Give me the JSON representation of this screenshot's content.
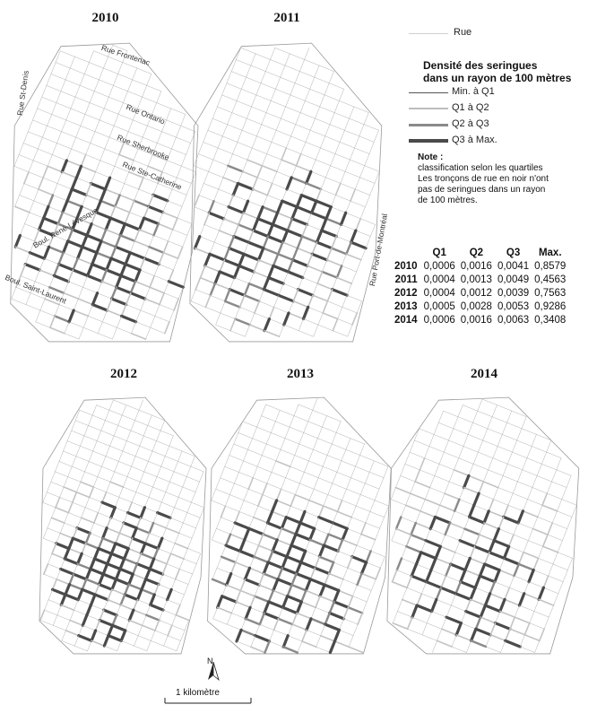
{
  "panels": [
    {
      "year": "2010",
      "intensity": 0.55
    },
    {
      "year": "2011",
      "intensity": 0.65
    },
    {
      "year": "2012",
      "intensity": 0.7
    },
    {
      "year": "2013",
      "intensity": 0.68
    },
    {
      "year": "2014",
      "intensity": 0.5
    }
  ],
  "street_labels": {
    "fronte": "Rue Frontenac",
    "ontario": "Rue Ontario",
    "sherbrooke": "Rue Sherbrooke",
    "ste_cath": "Rue Ste-Catherine",
    "dorchester": "Boul. René-Lévesque",
    "st_denis": "Rue St-Denis",
    "st_laurent": "Boul. Saint-Laurent",
    "port_montreal": "Rue Port-de-Montréal"
  },
  "legend": {
    "rue_label": "Rue",
    "title_line1": "Densité des seringues",
    "title_line2": "dans un rayon de 100 mètres",
    "classes": [
      {
        "label": "Min. à Q1",
        "color": "#555555",
        "width": 1
      },
      {
        "label": "Q1 à Q2",
        "color": "#bdbdbd",
        "width": 2
      },
      {
        "label": "Q2 à Q3",
        "color": "#8a8a8a",
        "width": 3
      },
      {
        "label": "Q3 à Max.",
        "color": "#4a4a4a",
        "width": 4.5
      }
    ],
    "note_title": "Note :",
    "note_line1": "classification selon les quartiles",
    "note_line2": "Les tronçons de rue en noir n'ont",
    "note_line3": "pas de seringues dans un rayon",
    "note_line4": "de 100 mètres."
  },
  "quartiles": {
    "headers": [
      "Q1",
      "Q2",
      "Q3",
      "Max."
    ],
    "rows": [
      {
        "year": "2010",
        "q1": "0,0006",
        "q2": "0,0016",
        "q3": "0,0041",
        "max": "0,8579"
      },
      {
        "year": "2011",
        "q1": "0,0004",
        "q2": "0,0013",
        "q3": "0,0049",
        "max": "0,4563"
      },
      {
        "year": "2012",
        "q1": "0,0004",
        "q2": "0,0012",
        "q3": "0,0039",
        "max": "0,7563"
      },
      {
        "year": "2013",
        "q1": "0,0005",
        "q2": "0,0028",
        "q3": "0,0053",
        "max": "0,9286"
      },
      {
        "year": "2014",
        "q1": "0,0006",
        "q2": "0,0016",
        "q3": "0,0063",
        "max": "0,3408"
      }
    ]
  },
  "scale": {
    "north": "N",
    "label": "1 kilomètre"
  },
  "colors": {
    "street": "#9a9a9a",
    "q3": "#4a4a4a",
    "q2": "#8a8a8a",
    "q1": "#bdbdbd"
  }
}
